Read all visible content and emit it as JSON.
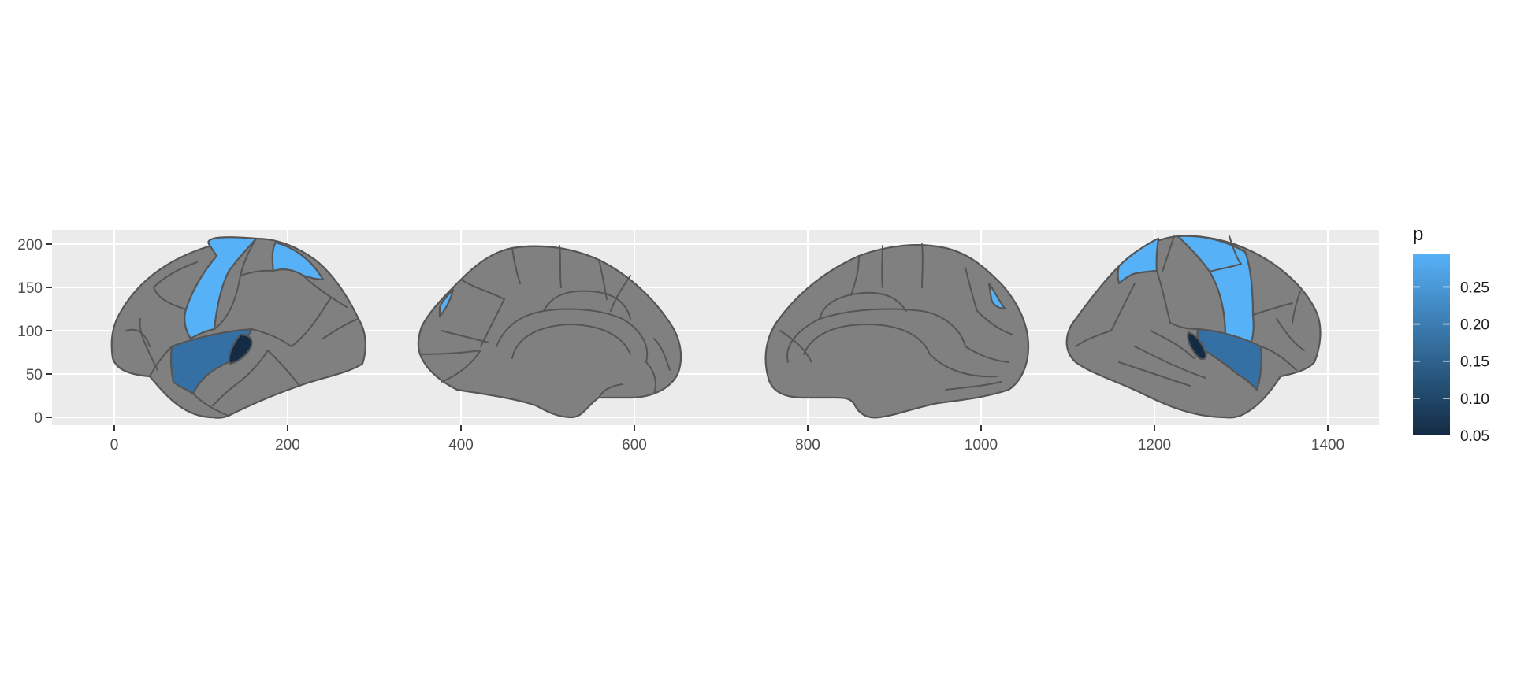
{
  "chart_data": {
    "type": "brain atlas (geom_brain)",
    "x_ticks": [
      0,
      200,
      400,
      600,
      800,
      1000,
      1200,
      1400
    ],
    "y_ticks": [
      0,
      50,
      100,
      150,
      200
    ],
    "xlim": [
      -70,
      1460
    ],
    "ylim": [
      -10,
      212
    ],
    "panel_background": "#ebebeb",
    "grid": true,
    "views": [
      {
        "name": "lateral-left",
        "highlighted": [
          {
            "region": "precentral",
            "p": 0.29
          },
          {
            "region": "postcentral",
            "p": 0.29
          },
          {
            "region": "superior-temporal",
            "p": 0.2
          },
          {
            "region": "transverse-temporal",
            "p": 0.05
          }
        ]
      },
      {
        "name": "medial-left",
        "highlighted": [
          {
            "region": "precentral-edge",
            "p": 0.29
          }
        ]
      },
      {
        "name": "medial-right",
        "highlighted": [
          {
            "region": "precentral-edge",
            "p": 0.29
          }
        ]
      },
      {
        "name": "lateral-right",
        "highlighted": [
          {
            "region": "precentral",
            "p": 0.29
          },
          {
            "region": "postcentral",
            "p": 0.29
          },
          {
            "region": "superior-temporal",
            "p": 0.2
          },
          {
            "region": "transverse-temporal",
            "p": 0.05
          }
        ]
      }
    ],
    "unhighlighted_color": "#808080",
    "legend": {
      "title": "p",
      "position": "right",
      "ticks": [
        "0.05",
        "0.10",
        "0.15",
        "0.20",
        "0.25"
      ],
      "tick_values": [
        0.05,
        0.1,
        0.15,
        0.2,
        0.25
      ],
      "range": [
        0.05,
        0.295
      ],
      "color_low": "#132b43",
      "color_high": "#56b1f7"
    }
  }
}
